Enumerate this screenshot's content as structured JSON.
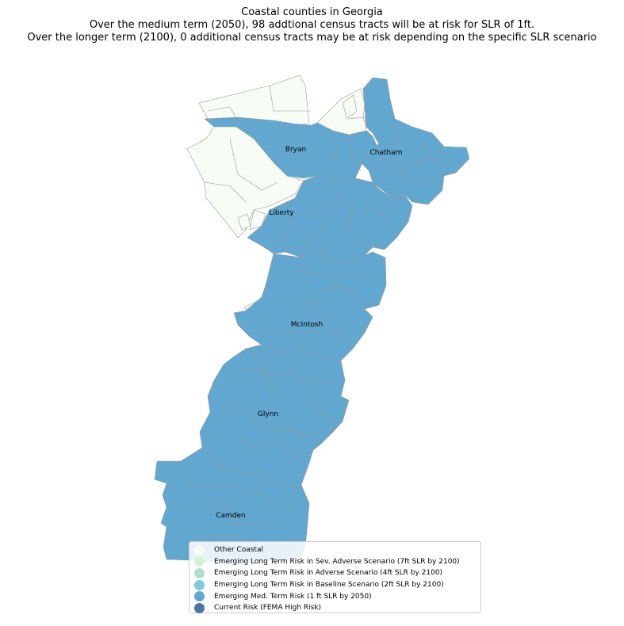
{
  "title": {
    "line1": "Coastal counties in Georgia",
    "line2": "Over the medium term (2050), 98 addtional census tracts will be at risk for SLR of 1ft.",
    "line3": "Over the longer term (2100), 0 additional census tracts may be at risk depending on the specific SLR scenario"
  },
  "counties": [
    "Bryan",
    "Chatham",
    "Liberty",
    "McIntosh",
    "Glynn",
    "Camden"
  ],
  "colors": {
    "other_coastal": "#f7fcf5",
    "sev_adverse": "#d8f0d3",
    "adverse": "#b2dfcc",
    "baseline": "#7fc9d8",
    "med_term": "#62a7cf",
    "current": "#4f73a6",
    "tract_border": "#999999"
  },
  "legend": [
    {
      "label": "Other Coastal",
      "color": "#f7fcf5"
    },
    {
      "label": "Emerging Long Term Risk in Sev. Adverse Scenario (7ft SLR by 2100)",
      "color": "#d8f0d3"
    },
    {
      "label": "Emerging Long Term Risk in Adverse Scenario (4ft SLR by 2100)",
      "color": "#b2dfcc"
    },
    {
      "label": "Emerging Long Term Risk in Baseline Scenario (2ft SLR by 2100)",
      "color": "#7fc9d8"
    },
    {
      "label": "Emerging Med. Term Risk (1 ft SLR by 2050)",
      "color": "#62a7cf"
    },
    {
      "label": "Current Risk (FEMA High Risk)",
      "color": "#4f73a6"
    }
  ]
}
